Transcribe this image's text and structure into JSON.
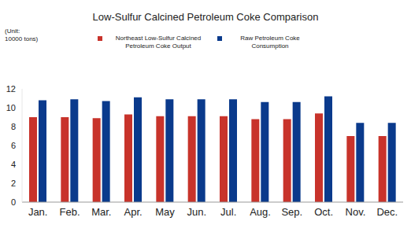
{
  "chart_data": {
    "type": "bar",
    "title": "Low-Sulfur Calcined Petroleum Coke Comparison",
    "annotations": [
      "(Unit:",
      "10000 tons)"
    ],
    "categories": [
      "Jan.",
      "Feb.",
      "Mar.",
      "Apr.",
      "May",
      "Jun.",
      "Jul.",
      "Aug.",
      "Sep.",
      "Oct.",
      "Nov.",
      "Dec."
    ],
    "series": [
      {
        "name": "Northeast Low-Sulfur Calcined Petroleum Coke Output",
        "color": "#c8332b",
        "values": [
          9.0,
          9.0,
          8.9,
          9.3,
          9.1,
          9.1,
          9.1,
          8.8,
          8.8,
          9.4,
          7.0,
          7.0
        ]
      },
      {
        "name": "Raw Petroleum Coke Consumption",
        "color": "#0a3a8c",
        "values": [
          10.8,
          10.9,
          10.7,
          11.1,
          10.9,
          10.9,
          10.9,
          10.6,
          10.6,
          11.2,
          8.4,
          8.4
        ]
      }
    ],
    "ylim": [
      0,
      12
    ],
    "yticks": [
      0,
      2,
      4,
      6,
      8,
      10,
      12
    ],
    "grid": false,
    "legend": "top"
  }
}
